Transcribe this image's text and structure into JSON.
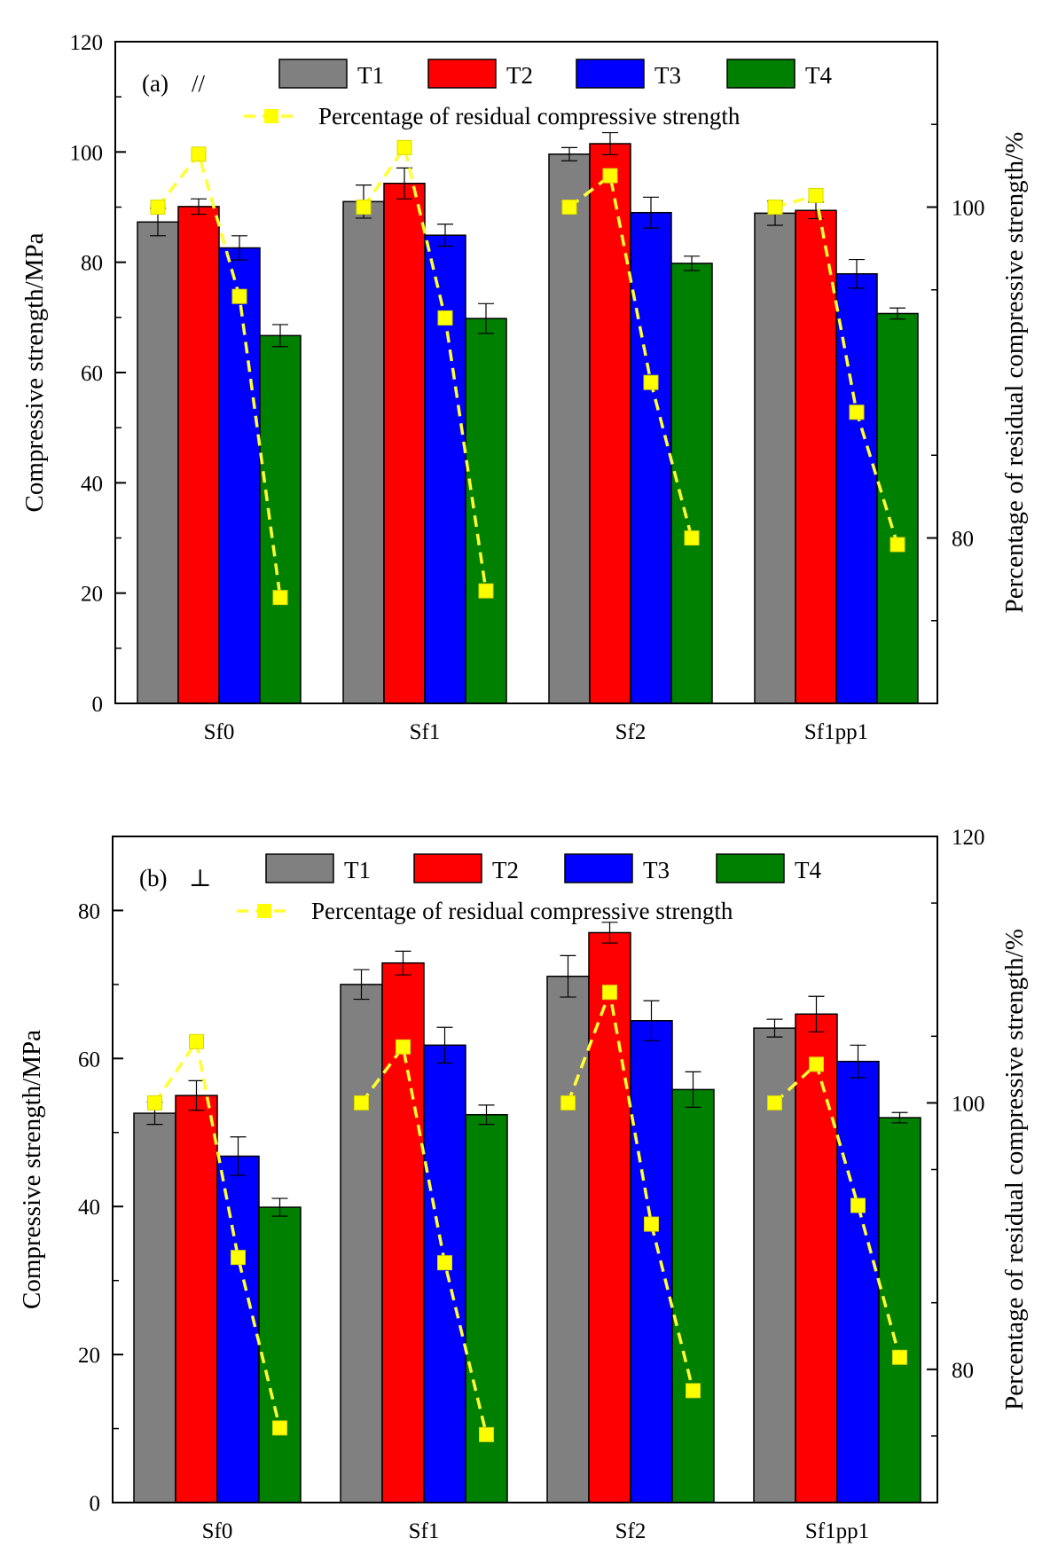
{
  "colors": {
    "T1": "#808080",
    "T2": "#ff0000",
    "T3": "#0000ff",
    "T4": "#008000",
    "line": "#ffff33",
    "marker": "#ffff00"
  },
  "chart_data": [
    {
      "type": "bar",
      "panel_label": "(a)",
      "panel_symbol": "//",
      "categories": [
        "Sf0",
        "Sf1",
        "Sf2",
        "Sf1pp1"
      ],
      "ylabel": "Compressive strength/MPa",
      "y2label": "Percentage of residual compressive strength/%",
      "ylim": [
        0,
        120
      ],
      "yticks": [
        0,
        20,
        40,
        60,
        80,
        100,
        120
      ],
      "y2lim": [
        70,
        110
      ],
      "y2ticks": [
        80,
        100
      ],
      "legend_position": "top",
      "series": [
        {
          "name": "T1",
          "values": [
            87.3,
            91.0,
            99.6,
            88.9
          ],
          "errors": [
            2.5,
            3.0,
            1.2,
            2.2
          ]
        },
        {
          "name": "T2",
          "values": [
            90.1,
            94.3,
            101.5,
            89.4
          ],
          "errors": [
            1.4,
            2.8,
            2.0,
            1.5
          ]
        },
        {
          "name": "T3",
          "values": [
            82.6,
            84.9,
            89.0,
            77.9
          ],
          "errors": [
            2.2,
            2.0,
            2.8,
            2.6
          ]
        },
        {
          "name": "T4",
          "values": [
            66.7,
            69.8,
            79.8,
            70.7
          ],
          "errors": [
            2.0,
            2.7,
            1.3,
            1.0
          ]
        }
      ],
      "line_series": {
        "name": "Percentage of residual compressive strength",
        "values": [
          [
            100,
            103.2,
            94.6,
            76.4
          ],
          [
            100,
            103.6,
            93.3,
            76.8
          ],
          [
            100,
            101.9,
            89.4,
            80.0
          ],
          [
            100,
            100.7,
            87.6,
            79.6
          ]
        ]
      }
    },
    {
      "type": "bar",
      "panel_label": "(b)",
      "panel_symbol": "⊥",
      "categories": [
        "Sf0",
        "Sf1",
        "Sf2",
        "Sf1pp1"
      ],
      "ylabel": "Compressive strength/MPa",
      "y2label": "Percentage of residual compressive strength/%",
      "ylim": [
        0,
        90
      ],
      "yticks": [
        0,
        20,
        40,
        60,
        80
      ],
      "y2lim": [
        70,
        120
      ],
      "y2ticks": [
        80,
        100,
        120
      ],
      "legend_position": "top",
      "series": [
        {
          "name": "T1",
          "values": [
            52.6,
            70.0,
            71.1,
            64.1
          ],
          "errors": [
            1.5,
            2.0,
            2.8,
            1.2
          ]
        },
        {
          "name": "T2",
          "values": [
            55.0,
            72.9,
            77.0,
            66.0
          ],
          "errors": [
            2.0,
            1.6,
            1.4,
            2.4
          ]
        },
        {
          "name": "T3",
          "values": [
            46.8,
            61.8,
            65.1,
            59.6
          ],
          "errors": [
            2.6,
            2.4,
            2.7,
            2.2
          ]
        },
        {
          "name": "T4",
          "values": [
            39.9,
            52.4,
            55.8,
            52.0
          ],
          "errors": [
            1.2,
            1.3,
            2.4,
            0.7
          ]
        }
      ],
      "line_series": {
        "name": "Percentage of residual compressive strength",
        "values": [
          [
            100,
            104.6,
            88.4,
            75.6
          ],
          [
            100,
            104.2,
            88.0,
            75.1
          ],
          [
            100,
            108.3,
            90.9,
            78.4
          ],
          [
            100,
            102.9,
            92.3,
            80.9
          ]
        ]
      }
    }
  ]
}
